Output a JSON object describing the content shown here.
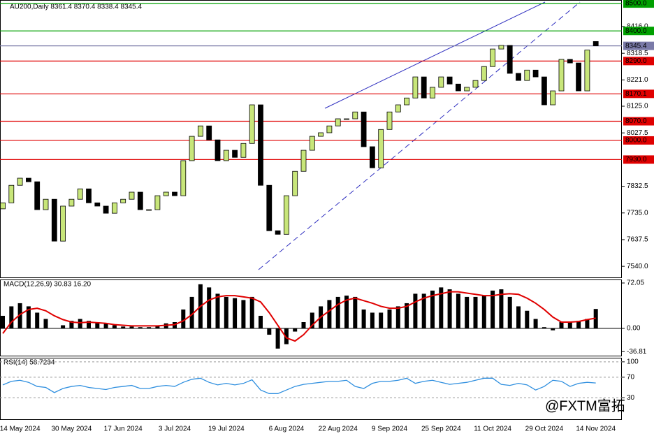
{
  "chart_data": [
    {
      "type": "candlestick",
      "title": "AU200,Daily  8361.4 8370.4 8338.4 8345.4",
      "up_color": "#c8e67a",
      "down_color": "#000000",
      "ylim": [
        7497,
        8513
      ],
      "yticks": [
        {
          "value": 8416,
          "label": "8416.0"
        },
        {
          "value": 8318.5,
          "label": "8318.5"
        },
        {
          "value": 8221,
          "label": "8221.0"
        },
        {
          "value": 8125,
          "label": "8125.0"
        },
        {
          "value": 8027.5,
          "label": "8027.5"
        },
        {
          "value": 7832.5,
          "label": "7832.5"
        },
        {
          "value": 7735,
          "label": "7735.0"
        },
        {
          "value": 7637.5,
          "label": "7637.5"
        },
        {
          "value": 7540,
          "label": "7540.0"
        }
      ],
      "levels": [
        {
          "value": 8500,
          "label": "8500.0",
          "color": "#00a000"
        },
        {
          "value": 8400,
          "label": "8400.0",
          "color": "#00a000"
        },
        {
          "value": 8345.4,
          "label": "8345.4",
          "color": "#7a7aa8"
        },
        {
          "value": 8290,
          "label": "8290.0",
          "color": "#e00000"
        },
        {
          "value": 8170.1,
          "label": "8170.1",
          "color": "#e00000"
        },
        {
          "value": 8070,
          "label": "8070.0",
          "color": "#e00000"
        },
        {
          "value": 8000,
          "label": "8000.0",
          "color": "#e00000"
        },
        {
          "value": 7930,
          "label": "7930.0",
          "color": "#e00000"
        }
      ],
      "categories": [
        null,
        null,
        "14 May 2024",
        null,
        null,
        null,
        null,
        null,
        "30 May 2024",
        null,
        null,
        null,
        null,
        null,
        "17 Jun 2024",
        null,
        null,
        null,
        null,
        null,
        "3 Jul 2024",
        null,
        null,
        null,
        null,
        null,
        "19 Jul 2024",
        null,
        null,
        null,
        null,
        null,
        null,
        "6 Aug 2024",
        null,
        null,
        null,
        null,
        null,
        "22 Aug 2024",
        null,
        null,
        null,
        null,
        null,
        "9 Sep 2024",
        null,
        null,
        null,
        null,
        null,
        "25 Sep 2024",
        null,
        null,
        null,
        null,
        null,
        "11 Oct 2024",
        null,
        null,
        null,
        null,
        null,
        "29 Oct 2024",
        null,
        null,
        null,
        null,
        null,
        "14 Nov 2024"
      ],
      "open": [
        7750,
        7772,
        7836,
        7862,
        7849,
        7747,
        7785,
        7632,
        7760,
        7785,
        7823,
        7772,
        7760,
        7734,
        7772,
        7785,
        7811,
        7747,
        7747,
        7798,
        7811,
        7798,
        7926,
        8015,
        8053,
        8002,
        7926,
        7964,
        7938,
        7989,
        8130,
        7836,
        7670,
        7657,
        7798,
        7887,
        7964,
        8015,
        8028,
        8053,
        8079,
        8079,
        8104,
        7977,
        7900,
        8040,
        8104,
        8130,
        8155,
        8232,
        8155,
        8194,
        8232,
        8206,
        8181,
        8194,
        8219,
        8270,
        8334,
        8347,
        8245,
        8219,
        8257,
        8232,
        8130,
        8181,
        8296,
        8283,
        8181,
        8361.4
      ],
      "close": [
        7772,
        7836,
        7862,
        7849,
        7747,
        7785,
        7632,
        7760,
        7785,
        7823,
        7772,
        7760,
        7734,
        7772,
        7785,
        7811,
        7747,
        7747,
        7798,
        7811,
        7798,
        7926,
        8015,
        8053,
        8002,
        7926,
        7964,
        7938,
        7989,
        8130,
        7836,
        7670,
        7657,
        7798,
        7887,
        7964,
        8015,
        8028,
        8053,
        8079,
        8079,
        8104,
        7977,
        7900,
        8040,
        8104,
        8130,
        8155,
        8232,
        8155,
        8194,
        8232,
        8206,
        8181,
        8194,
        8219,
        8270,
        8334,
        8347,
        8245,
        8219,
        8257,
        8232,
        8130,
        8181,
        8296,
        8283,
        8181,
        8330,
        8345.4
      ]
    },
    {
      "type": "macd",
      "title": "MACD(12,26,9) 30.83 16.20",
      "color": "#000000",
      "signal_color": "#e00000",
      "ylim": [
        -44.3,
        77.6
      ],
      "yticks": [
        {
          "value": 72.05,
          "label": "72.05"
        },
        {
          "value": 0,
          "label": "0.00"
        },
        {
          "value": -36.81,
          "label": "-36.81"
        }
      ],
      "histogram": [
        20,
        35,
        40,
        35,
        25,
        15,
        0,
        5,
        12,
        15,
        12,
        10,
        8,
        5,
        3,
        3,
        2,
        2,
        5,
        8,
        10,
        30,
        50,
        70,
        65,
        55,
        50,
        48,
        45,
        50,
        20,
        -10,
        -32,
        -25,
        -5,
        10,
        25,
        35,
        45,
        50,
        52,
        50,
        30,
        25,
        25,
        30,
        35,
        40,
        55,
        55,
        60,
        65,
        62,
        55,
        50,
        50,
        52,
        60,
        62,
        50,
        35,
        28,
        15,
        2,
        -3,
        10,
        10,
        12,
        15,
        30.83
      ],
      "signal": [
        -8,
        10,
        22,
        30,
        32,
        28,
        20,
        14,
        10,
        9,
        10,
        9,
        8,
        6,
        5,
        4,
        4,
        4,
        4,
        5,
        6,
        12,
        22,
        35,
        45,
        50,
        52,
        52,
        50,
        48,
        42,
        25,
        5,
        -15,
        -20,
        -10,
        5,
        18,
        28,
        38,
        45,
        48,
        44,
        40,
        35,
        32,
        32,
        35,
        42,
        48,
        52,
        55,
        58,
        58,
        56,
        54,
        52,
        52,
        54,
        55,
        54,
        48,
        40,
        30,
        18,
        10,
        10,
        11,
        14,
        16.2
      ]
    },
    {
      "type": "rsi",
      "title": "RSI(14) 58.7234",
      "color": "#2f8fdf",
      "watermark": "@FXTM富拓",
      "ylim": [
        -12,
        108
      ],
      "yticks": [
        100,
        70,
        30
      ],
      "values": [
        55,
        62,
        64,
        60,
        52,
        50,
        40,
        48,
        52,
        54,
        50,
        48,
        46,
        50,
        52,
        54,
        48,
        48,
        52,
        54,
        52,
        60,
        66,
        68,
        60,
        55,
        58,
        55,
        58,
        65,
        45,
        38,
        38,
        45,
        52,
        56,
        58,
        60,
        62,
        62,
        64,
        52,
        48,
        58,
        62,
        62,
        64,
        68,
        58,
        62,
        64,
        60,
        56,
        58,
        60,
        64,
        68,
        68,
        56,
        54,
        58,
        55,
        45,
        52,
        64,
        62,
        52,
        58,
        60,
        58.7234
      ]
    }
  ]
}
